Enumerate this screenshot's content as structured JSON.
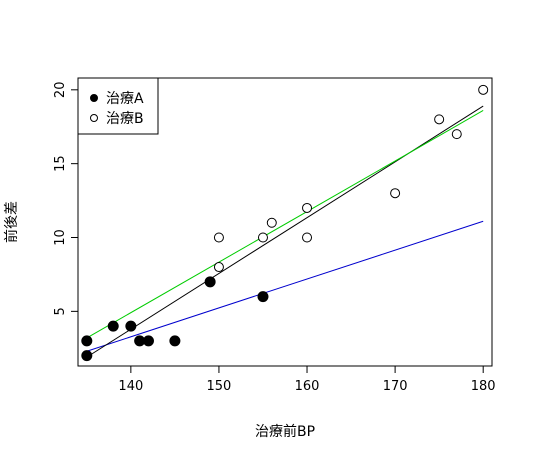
{
  "chart_data": {
    "type": "scatter",
    "title": "",
    "xlabel": "治療前BP",
    "ylabel": "前後差",
    "xlim": [
      134,
      181
    ],
    "ylim": [
      1.3,
      20.8
    ],
    "xticks": [
      140,
      150,
      160,
      170,
      180
    ],
    "yticks": [
      5,
      10,
      15,
      20
    ],
    "grid": false,
    "legend_position": "top-left",
    "series": [
      {
        "name": "治療A",
        "marker": "filled-circle",
        "points": [
          [
            135,
            3
          ],
          [
            135,
            2
          ],
          [
            138,
            4
          ],
          [
            140,
            4
          ],
          [
            141,
            3
          ],
          [
            142,
            3
          ],
          [
            145,
            3
          ],
          [
            149,
            7
          ],
          [
            155,
            6
          ]
        ]
      },
      {
        "name": "治療B",
        "marker": "open-circle",
        "points": [
          [
            150,
            10
          ],
          [
            150,
            8
          ],
          [
            155,
            10
          ],
          [
            156,
            11
          ],
          [
            160,
            12
          ],
          [
            160,
            10
          ],
          [
            170,
            13
          ],
          [
            175,
            18
          ],
          [
            177,
            17
          ],
          [
            180,
            20
          ]
        ]
      }
    ],
    "lines": [
      {
        "color": "#0000cd",
        "from": [
          135,
          2.3
        ],
        "to": [
          180,
          11.1
        ]
      },
      {
        "color": "#000000",
        "from": [
          135,
          1.9
        ],
        "to": [
          180,
          18.9
        ]
      },
      {
        "color": "#00cc00",
        "from": [
          135,
          3.2
        ],
        "to": [
          180,
          18.6
        ]
      }
    ]
  }
}
